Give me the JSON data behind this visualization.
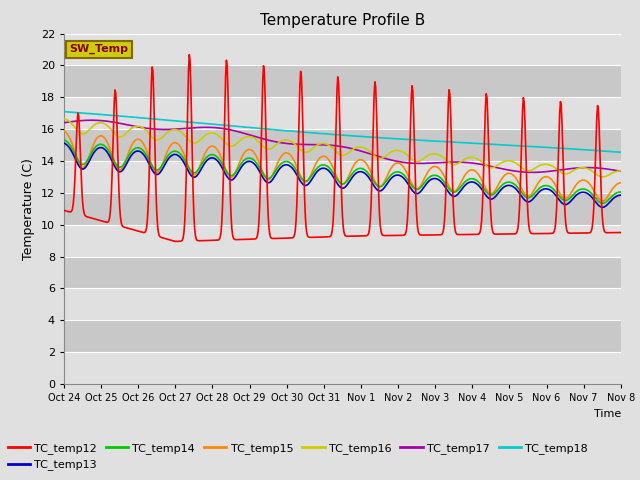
{
  "title": "Temperature Profile B",
  "xlabel": "Time",
  "ylabel": "Temperature (C)",
  "ylim": [
    0,
    22
  ],
  "yticks": [
    0,
    2,
    4,
    6,
    8,
    10,
    12,
    14,
    16,
    18,
    20,
    22
  ],
  "xtick_labels": [
    "Oct 24",
    "Oct 25",
    "Oct 26",
    "Oct 27",
    "Oct 28",
    "Oct 29",
    "Oct 30",
    "Oct 31",
    "Nov 1",
    "Nov 2",
    "Nov 3",
    "Nov 4",
    "Nov 5",
    "Nov 6",
    "Nov 7",
    "Nov 8"
  ],
  "bg_color": "#e0e0e0",
  "plot_bg_color": "#d8d8d8",
  "grid_color": "#c0c0c0",
  "series_colors": {
    "TC_temp12": "#ff0000",
    "TC_temp13": "#0000cc",
    "TC_temp14": "#00cc00",
    "TC_temp15": "#ff8800",
    "TC_temp16": "#cccc00",
    "TC_temp17": "#aa00aa",
    "TC_temp18": "#00cccc"
  },
  "sw_temp_box_facecolor": "#cccc00",
  "sw_temp_box_edgecolor": "#886600",
  "sw_temp_text_color": "#880000",
  "n_days": 15,
  "figsize": [
    6.4,
    4.8
  ],
  "dpi": 100
}
